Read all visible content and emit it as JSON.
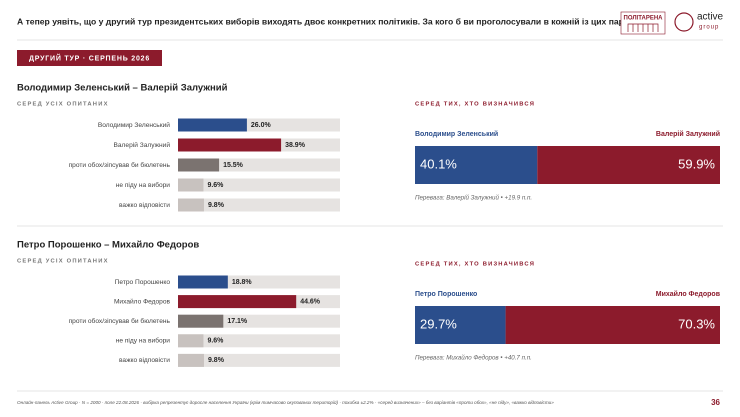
{
  "header": {
    "question": "А тепер уявіть, що у другий тур президентських виборів виходять двоє конкретних політиків. За кого б ви проголосували в кожній із цих пар?",
    "logo_left": "ПОЛІТАРЕНА",
    "logo_right_top": "active",
    "logo_right_bottom": "group"
  },
  "badge": "ДРУГИЙ ТУР · СЕРПЕНЬ 2026",
  "chart_data": [
    {
      "type": "bar",
      "orientation": "horizontal",
      "title": "Володимир Зеленський – Валерій Залужний",
      "subtitle": "СЕРЕД УСІХ ОПИТАНИХ",
      "categories": [
        "Володимир Зеленський",
        "Валерій Залужний",
        "проти обох/зіпсував би бюлетень",
        "не піду на вибори",
        "важко відповісти"
      ],
      "values": [
        26.0,
        38.9,
        15.5,
        9.6,
        9.8
      ],
      "value_labels": [
        "26.0%",
        "38.9%",
        "15.5%",
        "9.6%",
        "9.8%"
      ],
      "colors": [
        "#2b4e8c",
        "#8c1b2c",
        "#7b7370",
        "#c8c2bf",
        "#c8c2bf"
      ]
    },
    {
      "type": "split",
      "subtitle": "СЕРЕД ТИХ, ХТО ВИЗНАЧИВСЯ",
      "series": [
        {
          "name": "Володимир Зеленський",
          "color": "#2b4e8c",
          "values": [
            40.1
          ],
          "value_labels": [
            "40.1%"
          ]
        },
        {
          "name": "Валерій Залужний",
          "color": "#8c1b2c",
          "values": [
            59.9
          ],
          "value_labels": [
            "59.9%"
          ]
        }
      ],
      "annotation": "Перевага: Валерій Залужний • +19.9 п.п."
    },
    {
      "type": "bar",
      "orientation": "horizontal",
      "title": "Петро Порошенко – Михайло Федоров",
      "subtitle": "СЕРЕД УСІХ ОПИТАНИХ",
      "categories": [
        "Петро Порошенко",
        "Михайло Федоров",
        "проти обох/зіпсував би бюлетень",
        "не піду на вибори",
        "важко відповісти"
      ],
      "values": [
        18.8,
        44.6,
        17.1,
        9.6,
        9.8
      ],
      "value_labels": [
        "18.8%",
        "44.6%",
        "17.1%",
        "9.6%",
        "9.8%"
      ],
      "colors": [
        "#2b4e8c",
        "#8c1b2c",
        "#7b7370",
        "#c8c2bf",
        "#c8c2bf"
      ]
    },
    {
      "type": "split",
      "subtitle": "СЕРЕД ТИХ, ХТО ВИЗНАЧИВСЯ",
      "series": [
        {
          "name": "Петро Порошенко",
          "color": "#2b4e8c",
          "values": [
            29.7
          ],
          "value_labels": [
            "29.7%"
          ]
        },
        {
          "name": "Михайло Федоров",
          "color": "#8c1b2c",
          "values": [
            70.3
          ],
          "value_labels": [
            "70.3%"
          ]
        }
      ],
      "annotation": "Перевага: Михайло Федоров • +40.7 п.п."
    }
  ],
  "footer": {
    "note": "Онлайн-панель Active Group · N = 2000 · поле 22.08.2026 · вибірка репрезентує доросле населення України (крім тимчасово окупованих територій) · похибка ±2.2% · «серед визначених» – без варіантів «проти обох», «не піду», «важко відповісти»",
    "page": 36
  }
}
